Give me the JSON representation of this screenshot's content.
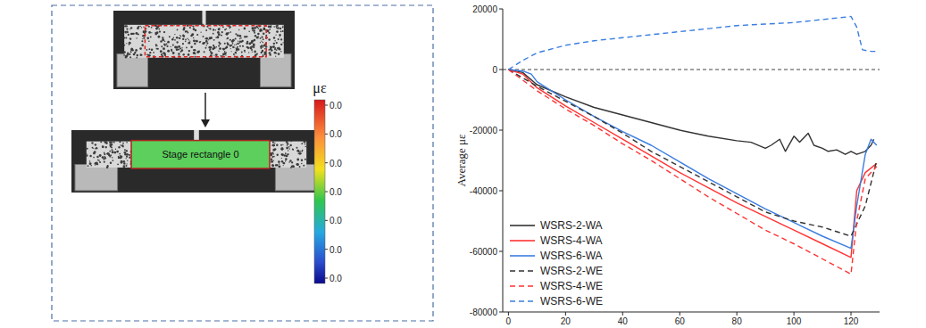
{
  "dic_panel": {
    "colorbar_label": "με",
    "colorbar_ticks": [
      "0.0",
      "0.0",
      "0.0",
      "0.0",
      "0.0",
      "0.0",
      "0.0"
    ],
    "region_label": "Stage rectangle 0"
  },
  "chart_data": {
    "type": "line",
    "y_label": "Average με",
    "xlim": [
      -2,
      130
    ],
    "xticks": [
      0,
      20,
      40,
      60,
      80,
      100,
      120
    ],
    "ylim": [
      -80000,
      20000
    ],
    "yticks": [
      -80000,
      -60000,
      -40000,
      -20000,
      0,
      20000
    ],
    "legend": "lower left",
    "grid": false,
    "series": [
      {
        "name": "WSRS-2-WA",
        "color": "#333333",
        "line_style": "solid",
        "x": [
          0,
          5,
          10,
          20,
          30,
          40,
          50,
          60,
          70,
          80,
          85,
          90,
          92,
          95,
          97,
          100,
          102,
          105,
          107,
          110,
          112,
          115,
          118,
          120,
          122,
          125,
          127,
          128
        ],
        "values": [
          0,
          -1000,
          -5000,
          -9000,
          -12500,
          -15000,
          -17500,
          -20000,
          -22000,
          -23500,
          -24000,
          -26000,
          -25000,
          -23000,
          -27000,
          -22000,
          -24000,
          -21000,
          -25000,
          -26000,
          -27000,
          -26500,
          -28000,
          -27000,
          -28000,
          -27000,
          -25000,
          -23000
        ]
      },
      {
        "name": "WSRS-4-WA",
        "color": "#ff3333",
        "line_style": "solid",
        "x": [
          0,
          5,
          10,
          20,
          30,
          40,
          50,
          60,
          70,
          80,
          90,
          100,
          110,
          120,
          122,
          125,
          129
        ],
        "values": [
          0,
          -1500,
          -6000,
          -12000,
          -17500,
          -23000,
          -28500,
          -34000,
          -39000,
          -44000,
          -48500,
          -53000,
          -57500,
          -62000,
          -40000,
          -34000,
          -31000
        ]
      },
      {
        "name": "WSRS-6-WA",
        "color": "#3a7de0",
        "line_style": "solid",
        "x": [
          0,
          5,
          8,
          10,
          20,
          30,
          40,
          50,
          60,
          70,
          80,
          90,
          100,
          110,
          120,
          122,
          125,
          127,
          129
        ],
        "values": [
          0,
          -500,
          -1500,
          -4000,
          -10000,
          -15500,
          -20500,
          -25000,
          -30500,
          -36000,
          -41000,
          -46000,
          -50500,
          -55000,
          -59000,
          -45000,
          -28000,
          -23000,
          -25000
        ]
      },
      {
        "name": "WSRS-2-WE",
        "color": "#333333",
        "line_style": "dashed",
        "x": [
          0,
          10,
          20,
          30,
          40,
          50,
          60,
          70,
          80,
          90,
          100,
          110,
          120,
          125,
          129
        ],
        "values": [
          0,
          -5500,
          -10500,
          -15500,
          -21000,
          -27000,
          -32000,
          -37000,
          -42000,
          -47000,
          -50000,
          -52000,
          -55000,
          -45000,
          -30000
        ]
      },
      {
        "name": "WSRS-4-WE",
        "color": "#ff3333",
        "line_style": "dashed",
        "x": [
          0,
          10,
          20,
          30,
          40,
          50,
          60,
          70,
          80,
          90,
          100,
          110,
          120,
          122,
          125,
          129
        ],
        "values": [
          0,
          -7000,
          -13000,
          -18500,
          -24500,
          -30000,
          -36000,
          -42000,
          -47500,
          -53000,
          -57500,
          -62500,
          -67500,
          -50000,
          -36000,
          -32000
        ]
      },
      {
        "name": "WSRS-6-WE",
        "color": "#3a7de0",
        "line_style": "dashed",
        "x": [
          0,
          5,
          10,
          20,
          30,
          40,
          50,
          60,
          70,
          80,
          90,
          100,
          110,
          120,
          122,
          124,
          127,
          129
        ],
        "values": [
          0,
          3000,
          5500,
          8000,
          9500,
          10500,
          11500,
          12500,
          13500,
          14500,
          15000,
          15500,
          16500,
          17500,
          14000,
          6500,
          6000,
          6000
        ]
      }
    ]
  }
}
